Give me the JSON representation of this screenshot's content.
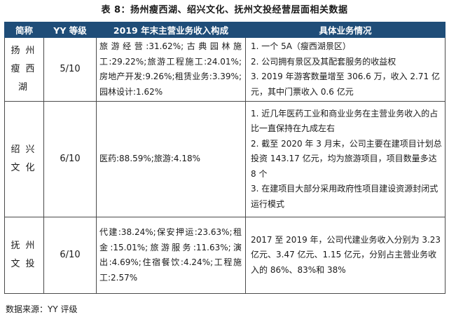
{
  "title": "表 8：扬州瘦西湖、绍兴文化、抚州文投经营层面相关数据",
  "headers": [
    "简称",
    "YY 等级",
    "2019 年末主营业务收入构成",
    "具体业务情况"
  ],
  "rows": [
    {
      "name": "扬州瘦西湖",
      "grade": "5/10",
      "composition": "旅游经营:31.62%;古典园林施工:29.22%;旅游工程施工:24.01%;房地产开发:9.26%;租赁业务:3.39%;园林设计:1.62%",
      "details": [
        "1. 一个 5A（瘦西湖景区）",
        "2. 公司拥有景区及其配套服务的收益权",
        "3. 2019 年游客数量增至 306.6 万，收入 2.71 亿元，其中门票收入 0.6 亿元"
      ]
    },
    {
      "name": "绍兴文化",
      "grade": "6/10",
      "composition": "医药:88.59%;旅游:4.18%",
      "details": [
        "1. 近几年医药工业和商业业务在主营业务收入的占比一直保持在九成左右",
        "2. 截至 2020 年 3 月末，公司主要在建项目计划总投资 143.17 亿元，均为旅游项目，项目数量多达 8 个",
        "3. 在建项目大部分采用政府性项目建设资源封闭式运行模式"
      ]
    },
    {
      "name": "抚州文投",
      "grade": "6/10",
      "composition": "代建:38.24%;保安押运:23.63%;租金:15.01%;旅游服务:11.63%;演出:4.69%;住宿餐饮:4.24%;工程施工:2.57%",
      "details": [
        "2017 至 2019 年，公司代建业务收入分别为 3.23 亿元、3.47 亿元、1.15 亿元，分别占主营业务收入的 86%、83%和 38%"
      ]
    }
  ],
  "source": "数据来源：YY 评级",
  "colors": {
    "header_bg": "#1f4d78",
    "header_text": "#ffffff",
    "border": "#4a4a4a"
  }
}
